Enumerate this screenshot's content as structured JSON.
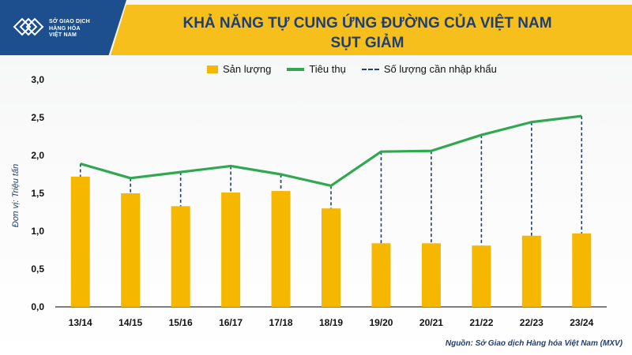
{
  "header": {
    "logo_lines": [
      "SỞ GIAO DỊCH",
      "HÀNG HÓA",
      "VIỆT NAM"
    ],
    "title_line1": "KHẢ NĂNG TỰ CUNG ỨNG ĐƯỜNG CỦA VIỆT NAM",
    "title_line2": "SỤT GIẢM"
  },
  "legend": {
    "production": "Sản lượng",
    "consumption": "Tiêu thụ",
    "imports": "Số lượng cần nhập khẩu"
  },
  "source": "Nguồn: Sở Giao dịch Hàng hóa Việt Nam (MXV)",
  "colors": {
    "bar": "#f6b700",
    "line": "#2fa84f",
    "dash": "#1f3e73",
    "title_band": "#f6bf1c",
    "logo_bg": "#1d4f8f"
  },
  "chart_data": {
    "type": "bar",
    "title": "KHẢ NĂNG TỰ CUNG ỨNG ĐƯỜNG CỦA VIỆT NAM SỤT GIẢM",
    "ylabel": "Đơn vị: Triệu tấn",
    "xlabel": "",
    "ylim": [
      0,
      3.0
    ],
    "yticks": [
      "0,0",
      "0,5",
      "1,0",
      "1,5",
      "2,0",
      "2,5",
      "3,0"
    ],
    "categories": [
      "13/14",
      "14/15",
      "15/16",
      "16/17",
      "17/18",
      "18/19",
      "19/20",
      "20/21",
      "21/22",
      "22/23",
      "23/24"
    ],
    "series": [
      {
        "name": "Sản lượng",
        "type": "bar",
        "values": [
          1.72,
          1.5,
          1.33,
          1.51,
          1.53,
          1.3,
          0.84,
          0.84,
          0.81,
          0.94,
          0.97
        ]
      },
      {
        "name": "Tiêu thụ",
        "type": "line",
        "values": [
          1.89,
          1.7,
          1.78,
          1.86,
          1.75,
          1.6,
          2.05,
          2.06,
          2.27,
          2.44,
          2.52
        ]
      },
      {
        "name": "Số lượng cần nhập khẩu",
        "type": "dashed-range",
        "description": "gap between production and consumption"
      }
    ],
    "grid": false,
    "legend_position": "top"
  }
}
